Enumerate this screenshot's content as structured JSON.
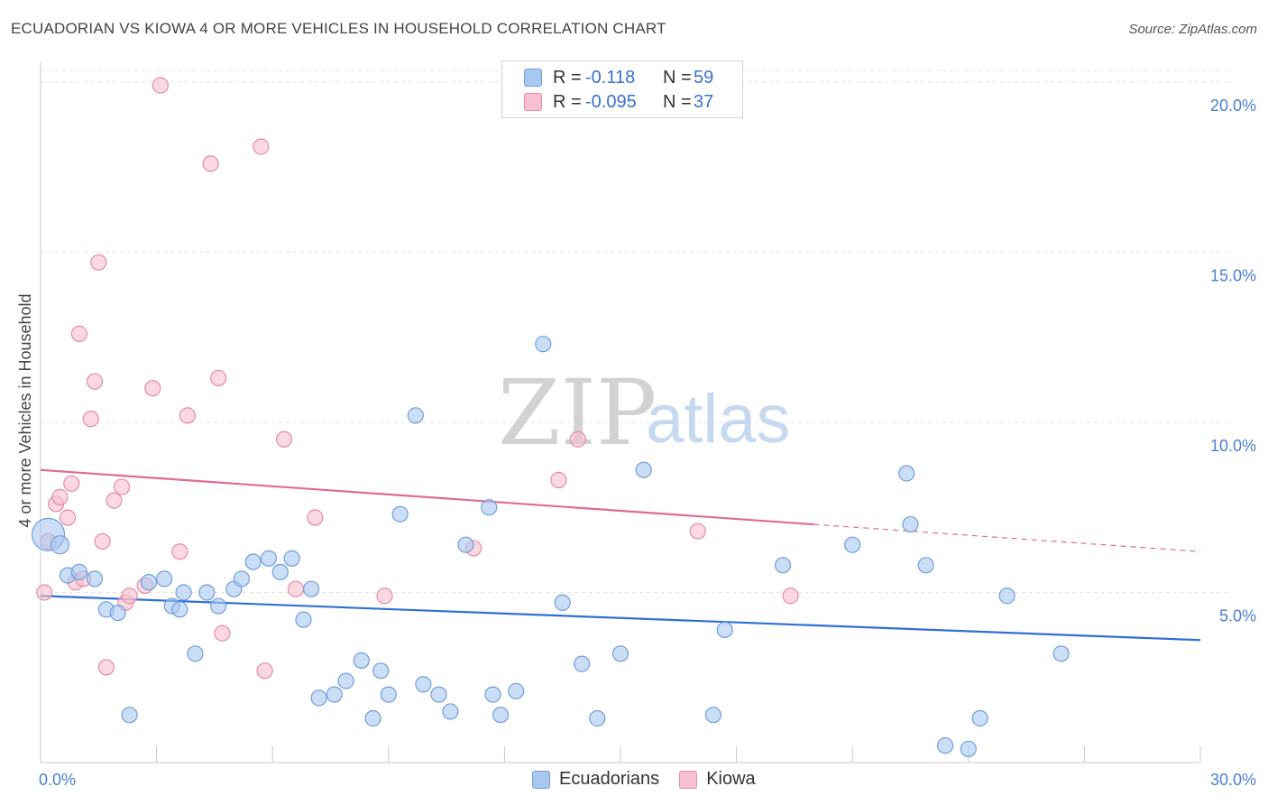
{
  "header": {
    "title": "ECUADORIAN VS KIOWA 4 OR MORE VEHICLES IN HOUSEHOLD CORRELATION CHART",
    "source": "Source: ZipAtlas.com"
  },
  "watermark": {
    "zip": "ZIP",
    "atlas": "atlas"
  },
  "legend": {
    "rows": [
      {
        "r_label": "R =",
        "r_value": "-0.118",
        "n_label": "N =",
        "n_value": "59",
        "color": "#a9c8f0",
        "border": "#6f9edc"
      },
      {
        "r_label": "R =",
        "r_value": "-0.095",
        "n_label": "N =",
        "n_value": "37",
        "color": "#f7c0d0",
        "border": "#e88aa5"
      }
    ],
    "series": [
      {
        "name": "Ecuadorians"
      },
      {
        "name": "Kiowa"
      }
    ]
  },
  "colors": {
    "blue_fill": "#a9c8f0",
    "blue_stroke": "#6f9edc",
    "blue_line": "#2f6fd6",
    "pink_fill": "#f7c0d0",
    "pink_stroke": "#e88aa5",
    "pink_line": "#e36a93",
    "grid": "#e3e3e3",
    "axis": "#c8c8c8"
  },
  "chart_data": {
    "type": "scatter",
    "title": "ECUADORIAN VS KIOWA 4 OR MORE VEHICLES IN HOUSEHOLD CORRELATION CHART",
    "xlabel": "",
    "ylabel": "4 or more Vehicles in Household",
    "xlim": [
      0,
      30
    ],
    "ylim": [
      0,
      20.5
    ],
    "x_tick_labels": [
      {
        "value": 0,
        "label": "0.0%"
      },
      {
        "value": 30,
        "label": "30.0%"
      }
    ],
    "y_tick_labels": [
      {
        "value": 5,
        "label": "5.0%"
      },
      {
        "value": 10,
        "label": "10.0%"
      },
      {
        "value": 15,
        "label": "15.0%"
      },
      {
        "value": 20,
        "label": "20.0%"
      }
    ],
    "series": [
      {
        "name": "Ecuadorians",
        "R": -0.118,
        "N": 59,
        "trend": {
          "x0": 0,
          "y0": 4.9,
          "x1": 30,
          "y1": 3.6,
          "solid_to": 30
        },
        "points": [
          [
            0.2,
            6.7,
            18
          ],
          [
            0.5,
            6.4,
            10
          ],
          [
            0.7,
            5.5,
            8
          ],
          [
            1.0,
            5.6,
            8
          ],
          [
            1.4,
            5.4,
            8
          ],
          [
            1.7,
            4.5,
            8
          ],
          [
            2.0,
            4.4,
            8
          ],
          [
            2.3,
            1.4,
            8
          ],
          [
            2.8,
            5.3,
            8
          ],
          [
            3.2,
            5.4,
            8
          ],
          [
            3.4,
            4.6,
            8
          ],
          [
            3.6,
            4.5,
            8
          ],
          [
            3.7,
            5.0,
            8
          ],
          [
            4.0,
            3.2,
            8
          ],
          [
            4.3,
            5.0,
            8
          ],
          [
            4.6,
            4.6,
            8
          ],
          [
            5.0,
            5.1,
            8
          ],
          [
            5.2,
            5.4,
            8
          ],
          [
            5.5,
            5.9,
            8
          ],
          [
            5.9,
            6.0,
            8
          ],
          [
            6.2,
            5.6,
            8
          ],
          [
            6.5,
            6.0,
            8
          ],
          [
            6.8,
            4.2,
            8
          ],
          [
            7.0,
            5.1,
            8
          ],
          [
            7.2,
            1.9,
            8
          ],
          [
            7.6,
            2.0,
            8
          ],
          [
            7.9,
            2.4,
            8
          ],
          [
            8.3,
            3.0,
            8
          ],
          [
            8.6,
            1.3,
            8
          ],
          [
            8.8,
            2.7,
            8
          ],
          [
            9.0,
            2.0,
            8
          ],
          [
            9.3,
            7.3,
            8
          ],
          [
            9.7,
            10.2,
            8
          ],
          [
            9.9,
            2.3,
            8
          ],
          [
            10.3,
            2.0,
            8
          ],
          [
            10.6,
            1.5,
            8
          ],
          [
            11.0,
            6.4,
            8
          ],
          [
            11.6,
            7.5,
            8
          ],
          [
            11.7,
            2.0,
            8
          ],
          [
            11.9,
            1.4,
            8
          ],
          [
            12.3,
            2.1,
            8
          ],
          [
            13.0,
            12.3,
            8
          ],
          [
            13.5,
            4.7,
            8
          ],
          [
            14.0,
            2.9,
            8
          ],
          [
            14.4,
            1.3,
            8
          ],
          [
            15.0,
            3.2,
            8
          ],
          [
            15.6,
            8.6,
            8
          ],
          [
            17.4,
            1.4,
            8
          ],
          [
            17.7,
            3.9,
            8
          ],
          [
            19.2,
            5.8,
            8
          ],
          [
            21.0,
            6.4,
            8
          ],
          [
            22.4,
            8.5,
            8
          ],
          [
            22.5,
            7.0,
            8
          ],
          [
            22.9,
            5.8,
            8
          ],
          [
            23.4,
            0.5,
            8
          ],
          [
            24.0,
            0.4,
            8
          ],
          [
            24.3,
            1.3,
            8
          ],
          [
            25.0,
            4.9,
            8
          ],
          [
            26.4,
            3.2,
            8
          ]
        ]
      },
      {
        "name": "Kiowa",
        "R": -0.095,
        "N": 37,
        "trend": {
          "x0": 0,
          "y0": 8.6,
          "x1": 30,
          "y1": 6.2,
          "solid_to": 20
        },
        "points": [
          [
            0.1,
            5.0,
            8
          ],
          [
            0.2,
            6.5,
            8
          ],
          [
            0.4,
            7.6,
            8
          ],
          [
            0.5,
            7.8,
            8
          ],
          [
            0.7,
            7.2,
            8
          ],
          [
            0.8,
            8.2,
            8
          ],
          [
            0.9,
            5.3,
            8
          ],
          [
            1.0,
            12.6,
            8
          ],
          [
            1.1,
            5.4,
            8
          ],
          [
            1.3,
            10.1,
            8
          ],
          [
            1.4,
            11.2,
            8
          ],
          [
            1.5,
            14.7,
            8
          ],
          [
            1.6,
            6.5,
            8
          ],
          [
            1.7,
            2.8,
            8
          ],
          [
            1.9,
            7.7,
            8
          ],
          [
            2.1,
            8.1,
            8
          ],
          [
            2.2,
            4.7,
            8
          ],
          [
            2.3,
            4.9,
            8
          ],
          [
            2.7,
            5.2,
            8
          ],
          [
            2.9,
            11.0,
            8
          ],
          [
            3.1,
            19.9,
            8
          ],
          [
            3.6,
            6.2,
            8
          ],
          [
            3.8,
            10.2,
            8
          ],
          [
            4.4,
            17.6,
            8
          ],
          [
            4.7,
            3.8,
            8
          ],
          [
            4.6,
            11.3,
            8
          ],
          [
            5.7,
            18.1,
            8
          ],
          [
            5.8,
            2.7,
            8
          ],
          [
            6.3,
            9.5,
            8
          ],
          [
            6.6,
            5.1,
            8
          ],
          [
            7.1,
            7.2,
            8
          ],
          [
            8.9,
            4.9,
            8
          ],
          [
            11.2,
            6.3,
            8
          ],
          [
            13.4,
            8.3,
            8
          ],
          [
            13.9,
            9.5,
            8
          ],
          [
            17.0,
            6.8,
            8
          ],
          [
            19.4,
            4.9,
            8
          ]
        ]
      }
    ]
  }
}
